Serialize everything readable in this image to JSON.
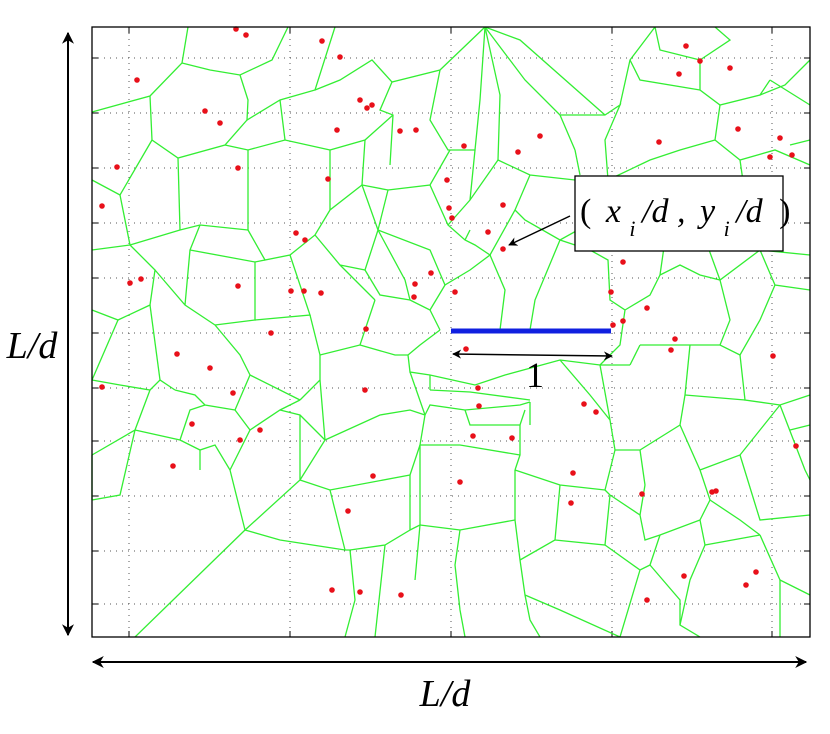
{
  "labels": {
    "left_axis": "L/d",
    "bottom_axis": "L/d",
    "unit_length": "1",
    "callout": {
      "open": "(",
      "x": "x",
      "x_sub": "i",
      "x_rest": "/d ,",
      "y": "y",
      "y_sub": "i",
      "y_rest": "/d",
      "close": ")"
    }
  },
  "colors": {
    "cell_edges": "#33ee33",
    "seed_points": "#e8101a",
    "unit_bar": "#1020e0",
    "grid": "#555555",
    "arrows": "#000000"
  }
}
